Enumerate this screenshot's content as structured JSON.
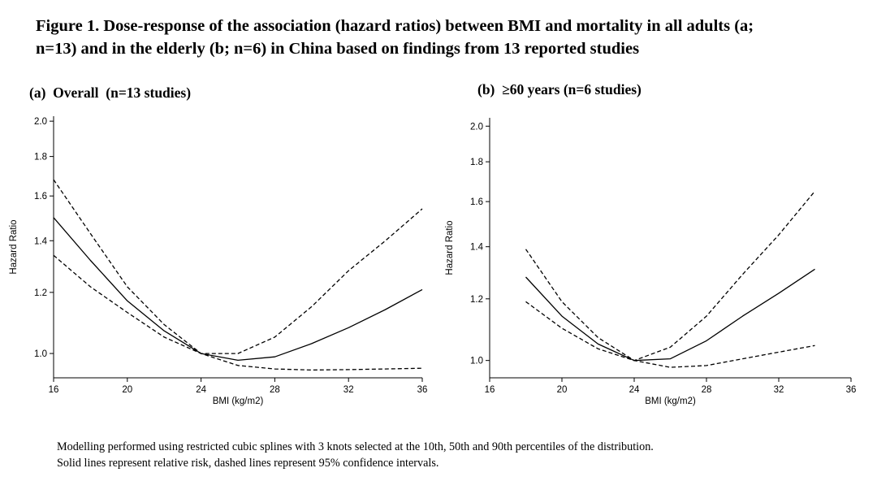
{
  "figure": {
    "title_line1": "Figure 1. Dose-response of the association (hazard ratios) between BMI and mortality in all adults (a;",
    "title_line2": "n=13) and in the elderly (b; n=6) in China based on findings from 13 reported studies"
  },
  "caption": {
    "line1": "Modelling performed using restricted cubic splines with 3 knots selected at the 10th, 50th and 90th percentiles of the distribution.",
    "line2": "Solid lines represent relative risk, dashed lines represent 95% confidence intervals."
  },
  "colors": {
    "line": "#000000",
    "axis": "#000000"
  },
  "chart_data": [
    {
      "id": "a",
      "type": "line",
      "title": "(a)  Overall  (n=13 studies)",
      "xlabel": "BMI (kg/m2)",
      "ylabel": "Hazard Ratio",
      "xlim": [
        16,
        36
      ],
      "ylim": [
        0.93,
        2.03
      ],
      "y_scale": "log",
      "xticks": [
        16,
        20,
        24,
        28,
        32,
        36
      ],
      "yticks": [
        1.0,
        1.2,
        1.4,
        1.6,
        1.8,
        2.0
      ],
      "ytick_labels": [
        "1.0",
        "1.2",
        "1.4",
        "1.6",
        "1.8",
        "2.0"
      ],
      "series": [
        {
          "name": "Relative risk",
          "style": "solid",
          "x": [
            16,
            18,
            20,
            22,
            24,
            26,
            28,
            30,
            32,
            34,
            36
          ],
          "y": [
            1.5,
            1.32,
            1.17,
            1.07,
            1.0,
            0.98,
            0.99,
            1.03,
            1.08,
            1.14,
            1.21
          ]
        },
        {
          "name": "95% CI upper",
          "style": "dashed",
          "x": [
            16,
            18,
            20,
            22,
            24,
            26,
            28,
            30,
            32,
            34,
            36
          ],
          "y": [
            1.68,
            1.43,
            1.22,
            1.09,
            1.0,
            1.0,
            1.05,
            1.15,
            1.28,
            1.4,
            1.54
          ]
        },
        {
          "name": "95% CI lower",
          "style": "dashed",
          "x": [
            16,
            18,
            20,
            22,
            24,
            26,
            28,
            30,
            32,
            34,
            36
          ],
          "y": [
            1.34,
            1.22,
            1.13,
            1.05,
            1.0,
            0.965,
            0.955,
            0.952,
            0.953,
            0.955,
            0.957
          ]
        }
      ]
    },
    {
      "id": "b",
      "type": "line",
      "title": "(b)  ≥60 years (n=6 studies)",
      "xlabel": "BMI (kg/m2)",
      "ylabel": "Hazard Ratio",
      "xlim": [
        16,
        36
      ],
      "ylim": [
        0.95,
        2.05
      ],
      "y_scale": "log",
      "xticks": [
        16,
        20,
        24,
        28,
        32,
        36
      ],
      "yticks": [
        1.0,
        1.2,
        1.4,
        1.6,
        1.8,
        2.0
      ],
      "ytick_labels": [
        "1.0",
        "1.2",
        "1.4",
        "1.6",
        "1.8",
        "2.0"
      ],
      "series": [
        {
          "name": "Relative risk",
          "style": "solid",
          "x": [
            18,
            20,
            22,
            24,
            26,
            28,
            30,
            32,
            34
          ],
          "y": [
            1.28,
            1.14,
            1.05,
            1.0,
            1.005,
            1.06,
            1.14,
            1.22,
            1.31
          ]
        },
        {
          "name": "95% CI upper",
          "style": "dashed",
          "x": [
            18,
            20,
            22,
            24,
            26,
            28,
            30,
            32,
            34
          ],
          "y": [
            1.39,
            1.19,
            1.07,
            1.0,
            1.04,
            1.14,
            1.29,
            1.45,
            1.65
          ]
        },
        {
          "name": "95% CI lower",
          "style": "dashed",
          "x": [
            18,
            20,
            22,
            24,
            26,
            28,
            30,
            32,
            34
          ],
          "y": [
            1.19,
            1.1,
            1.035,
            1.0,
            0.98,
            0.985,
            1.005,
            1.025,
            1.045
          ]
        }
      ]
    }
  ]
}
